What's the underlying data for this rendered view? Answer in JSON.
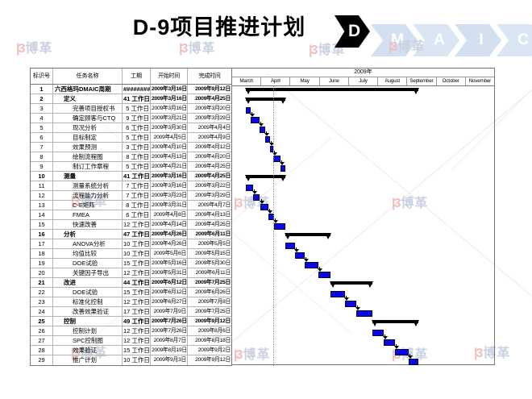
{
  "slide": {
    "title": "D-9项目推进计划",
    "logo_letter": "D",
    "maic_letters": [
      "M",
      "A",
      "I",
      "C"
    ],
    "watermark_logo": "|3",
    "watermark_text": "博革"
  },
  "colors": {
    "task_bar_blue": "#0a0ae0",
    "summary_bar_black": "#000000",
    "maic_chevron_fills": [
      "#d3e0f0",
      "#dae6f4",
      "#d3e0f0",
      "#dae6f4"
    ],
    "watermark_red": "#f2bcbc",
    "watermark_blue": "#c9d2e0"
  },
  "table": {
    "headers": [
      "标识号",
      "任务名称",
      "工期",
      "开始时间",
      "完成时间"
    ]
  },
  "gantt": {
    "year_label": "2009年",
    "months": [
      "March",
      "April",
      "May",
      "June",
      "July",
      "August",
      "September",
      "October",
      "November"
    ],
    "today_line_date": "2009年4月13日"
  },
  "chart_data": {
    "type": "gantt",
    "timeline": {
      "year": 2009,
      "first_month": 3,
      "last_month": 11
    },
    "tasks": [
      {
        "id": 1,
        "name": "六西格玛DMAIC周期",
        "level": 0,
        "summary": true,
        "duration": "#########",
        "start": "2009年3月16日",
        "end": "2009年9月12日"
      },
      {
        "id": 2,
        "name": "定义",
        "level": 1,
        "summary": true,
        "duration": "41 工作日",
        "start": "2009年3月16日",
        "end": "2009年4月25日"
      },
      {
        "id": 3,
        "name": "完善项目授权书",
        "level": 2,
        "summary": false,
        "duration": "5 工作日",
        "start": "2009年3月16日",
        "end": "2009年3月20日"
      },
      {
        "id": 4,
        "name": "确定顾客与CTQ",
        "level": 2,
        "summary": false,
        "duration": "9 工作日",
        "start": "2009年3月21日",
        "end": "2009年3月29日"
      },
      {
        "id": 5,
        "name": "现况分析",
        "level": 2,
        "summary": false,
        "duration": "6 工作日",
        "start": "2009年3月30日",
        "end": "2009年4月4日"
      },
      {
        "id": 6,
        "name": "目标制定",
        "level": 2,
        "summary": false,
        "duration": "5 工作日",
        "start": "2009年4月5日",
        "end": "2009年4月9日"
      },
      {
        "id": 7,
        "name": "效果预测",
        "level": 2,
        "summary": false,
        "duration": "3 工作日",
        "start": "2009年4月10日",
        "end": "2009年4月12日"
      },
      {
        "id": 8,
        "name": "绘制流程图",
        "level": 2,
        "summary": false,
        "duration": "8 工作日",
        "start": "2009年4月13日",
        "end": "2009年4月20日"
      },
      {
        "id": 9,
        "name": "制订工作章程",
        "level": 2,
        "summary": false,
        "duration": "5 工作日",
        "start": "2009年4月21日",
        "end": "2009年4月25日"
      },
      {
        "id": 10,
        "name": "测量",
        "level": 1,
        "summary": true,
        "duration": "41 工作日",
        "start": "2009年3月16日",
        "end": "2009年4月25日"
      },
      {
        "id": 11,
        "name": "测量系统分析",
        "level": 2,
        "summary": false,
        "duration": "7 工作日",
        "start": "2009年3月16日",
        "end": "2009年3月22日"
      },
      {
        "id": 12,
        "name": "流程能力分析",
        "level": 2,
        "summary": false,
        "duration": "7 工作日",
        "start": "2009年3月23日",
        "end": "2009年3月29日"
      },
      {
        "id": 13,
        "name": "C-E矩阵",
        "level": 2,
        "summary": false,
        "duration": "8 工作日",
        "start": "2009年3月31日",
        "end": "2009年4月7日"
      },
      {
        "id": 14,
        "name": "FMEA",
        "level": 2,
        "summary": false,
        "duration": "6 工作日",
        "start": "2009年4月8日",
        "end": "2009年4月13日"
      },
      {
        "id": 15,
        "name": "快速改善",
        "level": 2,
        "summary": false,
        "duration": "12 工作日",
        "start": "2009年4月14日",
        "end": "2009年4月25日"
      },
      {
        "id": 16,
        "name": "分析",
        "level": 1,
        "summary": true,
        "duration": "47 工作日",
        "start": "2009年4月26日",
        "end": "2009年6月11日"
      },
      {
        "id": 17,
        "name": "ANOVA分析",
        "level": 2,
        "summary": false,
        "duration": "10 工作日",
        "start": "2009年4月26日",
        "end": "2009年5月5日"
      },
      {
        "id": 18,
        "name": "均值比较",
        "level": 2,
        "summary": false,
        "duration": "10 工作日",
        "start": "2009年5月6日",
        "end": "2009年5月15日"
      },
      {
        "id": 19,
        "name": "DOE试验",
        "level": 2,
        "summary": false,
        "duration": "15 工作日",
        "start": "2009年5月16日",
        "end": "2009年5月30日"
      },
      {
        "id": 20,
        "name": "关键因子导出",
        "level": 2,
        "summary": false,
        "duration": "12 工作日",
        "start": "2009年5月31日",
        "end": "2009年6月11日"
      },
      {
        "id": 21,
        "name": "改进",
        "level": 1,
        "summary": true,
        "duration": "44 工作日",
        "start": "2009年6月12日",
        "end": "2009年7月25日"
      },
      {
        "id": 22,
        "name": "DOE试验",
        "level": 2,
        "summary": false,
        "duration": "15 工作日",
        "start": "2009年6月12日",
        "end": "2009年6月26日"
      },
      {
        "id": 23,
        "name": "标准化控制",
        "level": 2,
        "summary": false,
        "duration": "12 工作日",
        "start": "2009年6月27日",
        "end": "2009年7月8日"
      },
      {
        "id": 24,
        "name": "改善效果验证",
        "level": 2,
        "summary": false,
        "duration": "17 工作日",
        "start": "2009年7月9日",
        "end": "2009年7月25日"
      },
      {
        "id": 25,
        "name": "控制",
        "level": 1,
        "summary": true,
        "duration": "49 工作日",
        "start": "2009年7月26日",
        "end": "2009年9月12日"
      },
      {
        "id": 26,
        "name": "控制计划",
        "level": 2,
        "summary": false,
        "duration": "12 工作日",
        "start": "2009年7月26日",
        "end": "2009年8月6日"
      },
      {
        "id": 27,
        "name": "SPC控制图",
        "level": 2,
        "summary": false,
        "duration": "12 工作日",
        "start": "2009年8月7日",
        "end": "2009年8月18日"
      },
      {
        "id": 28,
        "name": "效果验证",
        "level": 2,
        "summary": false,
        "duration": "15 工作日",
        "start": "2009年8月19日",
        "end": "2009年9月2日"
      },
      {
        "id": 29,
        "name": "推广计划",
        "level": 2,
        "summary": false,
        "duration": "10 工作日",
        "start": "2009年9月3日",
        "end": "2009年9月12日"
      }
    ],
    "links": [
      [
        3,
        4
      ],
      [
        4,
        5
      ],
      [
        5,
        6
      ],
      [
        6,
        7
      ],
      [
        7,
        8
      ],
      [
        8,
        9
      ],
      [
        11,
        12
      ],
      [
        12,
        13
      ],
      [
        13,
        14
      ],
      [
        14,
        15
      ],
      [
        17,
        18
      ],
      [
        18,
        19
      ],
      [
        19,
        20
      ],
      [
        22,
        23
      ],
      [
        23,
        24
      ],
      [
        26,
        27
      ],
      [
        27,
        28
      ],
      [
        28,
        29
      ]
    ]
  }
}
